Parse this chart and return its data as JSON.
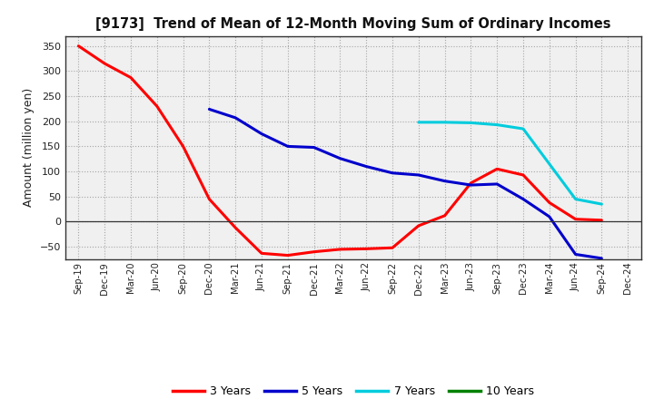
{
  "title": "[9173]  Trend of Mean of 12-Month Moving Sum of Ordinary Incomes",
  "ylabel": "Amount (million yen)",
  "ylim": [
    -75,
    370
  ],
  "yticks": [
    -50,
    0,
    50,
    100,
    150,
    200,
    250,
    300,
    350
  ],
  "background_color": "#ffffff",
  "plot_bg_color": "#f0f0f0",
  "grid_color": "#888888",
  "series": {
    "3years": {
      "color": "#ff0000",
      "label": "3 Years",
      "x": [
        0,
        1,
        2,
        3,
        4,
        5,
        6,
        7,
        8,
        9,
        10,
        11,
        12,
        13,
        14,
        15,
        16,
        17,
        18,
        19,
        20
      ],
      "y": [
        350,
        315,
        287,
        230,
        150,
        45,
        -12,
        -63,
        -67,
        -60,
        -55,
        -54,
        -52,
        -8,
        12,
        77,
        105,
        93,
        38,
        5,
        3
      ]
    },
    "5years": {
      "color": "#0000cc",
      "label": "5 Years",
      "x": [
        5,
        6,
        7,
        8,
        9,
        10,
        11,
        12,
        13,
        14,
        15,
        16,
        17,
        18,
        19,
        20
      ],
      "y": [
        224,
        207,
        175,
        150,
        148,
        126,
        110,
        97,
        93,
        81,
        73,
        75,
        45,
        10,
        -65,
        -73
      ]
    },
    "7years": {
      "color": "#00ccdd",
      "label": "7 Years",
      "x": [
        13,
        14,
        15,
        16,
        17,
        18,
        19,
        20
      ],
      "y": [
        198,
        198,
        197,
        193,
        185,
        115,
        45,
        35
      ]
    },
    "10years": {
      "color": "#008000",
      "label": "10 Years",
      "x": [
        20
      ],
      "y": [
        3
      ]
    }
  },
  "xtick_labels": [
    "Sep-19",
    "Dec-19",
    "Mar-20",
    "Jun-20",
    "Sep-20",
    "Dec-20",
    "Mar-21",
    "Jun-21",
    "Sep-21",
    "Dec-21",
    "Mar-22",
    "Jun-22",
    "Sep-22",
    "Dec-22",
    "Mar-23",
    "Jun-23",
    "Sep-23",
    "Dec-23",
    "Mar-24",
    "Jun-24",
    "Sep-24",
    "Dec-24"
  ],
  "legend_labels": [
    "3 Years",
    "5 Years",
    "7 Years",
    "10 Years"
  ],
  "legend_colors": [
    "#ff0000",
    "#0000cc",
    "#00ccdd",
    "#008000"
  ]
}
